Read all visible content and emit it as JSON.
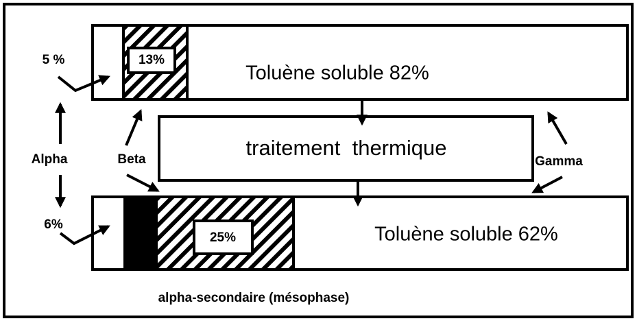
{
  "top_bar": {
    "alpha": "5 %",
    "beta": "13%",
    "gamma": "Toluène soluble 82%"
  },
  "process": "traitement  thermique",
  "labels": {
    "alpha": "Alpha",
    "beta": "Beta",
    "gamma": "Gamma"
  },
  "bottom_bar": {
    "alpha": "6%",
    "beta": "25%",
    "gamma": "Toluène soluble 62%"
  },
  "footnote": "alpha-secondaire (mésophase)"
}
